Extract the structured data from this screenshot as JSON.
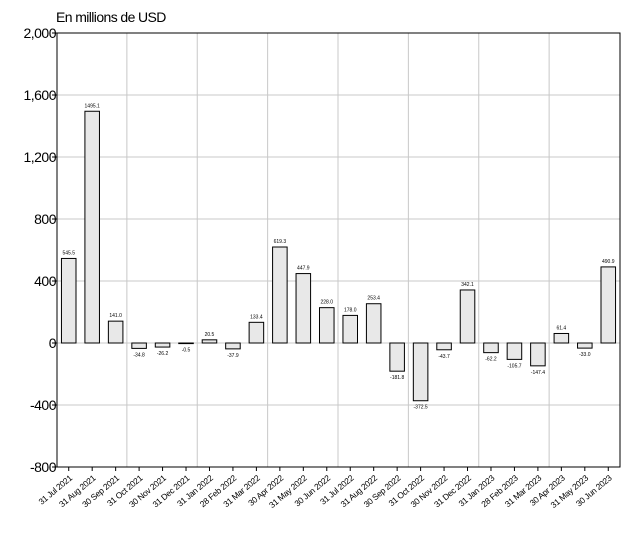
{
  "chart_data": {
    "type": "bar",
    "ylabel": "En millions de USD",
    "ylim": [
      -800,
      2000
    ],
    "yticks": [
      -800,
      -400,
      0,
      400,
      800,
      1200,
      1600,
      2000
    ],
    "ytick_labels": [
      "-800",
      "-400",
      "0",
      "400",
      "800",
      "1,200",
      "1,600",
      "2,000"
    ],
    "grid": true,
    "categories": [
      "31 Jul 2021",
      "31 Aug 2021",
      "30 Sep 2021",
      "31 Oct 2021",
      "30 Nov 2021",
      "31 Dec 2021",
      "31 Jan 2022",
      "28 Feb 2022",
      "31 Mar 2022",
      "30 Apr 2022",
      "31 May 2022",
      "30 Jun 2022",
      "31 Jul 2022",
      "31 Aug 2022",
      "30 Sep 2022",
      "31 Oct 2022",
      "30 Nov 2022",
      "31 Dec 2022",
      "31 Jan 2023",
      "28 Feb 2023",
      "31 Mar 2023",
      "30 Apr 2023",
      "31 May 2023",
      "30 Jun 2023"
    ],
    "values": [
      545.5,
      1495.1,
      141.0,
      -34.8,
      -26.2,
      -0.5,
      20.5,
      -37.9,
      133.4,
      619.3,
      447.9,
      228.0,
      178.0,
      253.4,
      -181.8,
      -372.5,
      -43.7,
      342.1,
      -62.2,
      -105.7,
      -147.4,
      61.4,
      -33.0,
      490.9
    ],
    "value_labels": [
      "545.5",
      "1495.1",
      "141.0",
      "-34.8",
      "-26.2",
      "-0.5",
      "20.5",
      "-37.9",
      "133.4",
      "619.3",
      "447.9",
      "228.0",
      "178.0",
      "253.4",
      "-181.8",
      "-372.5",
      "-43.7",
      "342.1",
      "-62.2",
      "-105.7",
      "-147.4",
      "61.4",
      "-33.0",
      "490.9"
    ],
    "bar_fill": "#e8e8e8",
    "bar_stroke": "#000000",
    "grid_color": "#c8c8c8"
  }
}
